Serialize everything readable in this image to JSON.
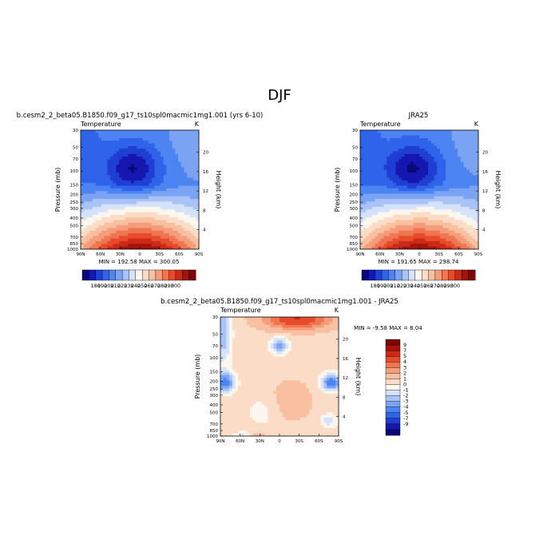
{
  "figure": {
    "title": "DJF"
  },
  "colors": {
    "abs_scale": [
      "#08087a",
      "#1616b0",
      "#1f3fd2",
      "#2e63ea",
      "#4c84f2",
      "#7ba3f4",
      "#a9c3f6",
      "#d4e2fa",
      "#fbf7ee",
      "#fbdcc6",
      "#f8bfa1",
      "#f59d7a",
      "#ef7651",
      "#e64c2c",
      "#cc2a16",
      "#a8120c",
      "#7d0606"
    ],
    "diff_scale": [
      "#08087a",
      "#1616b0",
      "#1f3fd2",
      "#2e63ea",
      "#4c84f2",
      "#7ba3f4",
      "#a9c3f6",
      "#d4e2fa",
      "#fbf7ee",
      "#fbdcc6",
      "#f8bfa1",
      "#f59d7a",
      "#ef7651",
      "#e64c2c",
      "#cc2a16",
      "#a8120c",
      "#7d0606"
    ]
  },
  "chart_data": [
    {
      "type": "heatmap",
      "title": "b.cesm2_2_beta05.B1850.f09_g17_ts10spl0macmic1mg1.001 (yrs 6-10)",
      "subtitle": "Temperature",
      "units": "K",
      "ylabel": "Pressure (mb)",
      "y2label": "Height (km)",
      "x_ticks": [
        "90N",
        "60N",
        "30N",
        "0",
        "30S",
        "60S",
        "90S"
      ],
      "y_ticks": [
        "30",
        "50",
        "70",
        "100",
        "150",
        "200",
        "250",
        "300",
        "400",
        "500",
        "700",
        "850",
        "1000"
      ],
      "y2_ticks": [
        "20",
        "16",
        "12",
        "8",
        "4"
      ],
      "stats": "MIN = 192.58   MAX = 300.05",
      "colorbar_labels": [
        "180",
        "190",
        "200",
        "210",
        "220",
        "230",
        "240",
        "250",
        "260",
        "270",
        "280",
        "290",
        "300"
      ],
      "zlim": [
        192.58,
        300.05
      ]
    },
    {
      "type": "heatmap",
      "title": "JRA25",
      "subtitle": "Temperature",
      "units": "K",
      "ylabel": "Pressure (mb)",
      "y2label": "Height (km)",
      "x_ticks": [
        "90N",
        "60N",
        "30N",
        "0",
        "30S",
        "60S",
        "90S"
      ],
      "y_ticks": [
        "30",
        "50",
        "70",
        "100",
        "150",
        "200",
        "250",
        "300",
        "400",
        "500",
        "700",
        "850",
        "1000"
      ],
      "y2_ticks": [
        "20",
        "16",
        "12",
        "8",
        "4"
      ],
      "stats": "MIN = 191.65   MAX = 298.74",
      "colorbar_labels": [
        "180",
        "190",
        "200",
        "210",
        "220",
        "230",
        "240",
        "250",
        "260",
        "270",
        "280",
        "290",
        "300"
      ],
      "zlim": [
        191.65,
        298.74
      ]
    },
    {
      "type": "heatmap",
      "title": "b.cesm2_2_beta05.B1850.f09_g17_ts10spl0macmic1mg1.001 - JRA25",
      "subtitle": "Temperature",
      "units": "K",
      "ylabel": "Pressure (mb)",
      "y2label": "Height (km)",
      "x_ticks": [
        "90N",
        "60N",
        "30N",
        "0",
        "30S",
        "60S",
        "90S"
      ],
      "y_ticks": [
        "30",
        "50",
        "70",
        "100",
        "150",
        "200",
        "250",
        "300",
        "400",
        "500",
        "700",
        "850",
        "1000"
      ],
      "y2_ticks": [
        "20",
        "16",
        "12",
        "8",
        "4"
      ],
      "stats": "MIN =   -9.58   MAX =    8.04",
      "colorbar_labels": [
        "9",
        "7",
        "5",
        "4",
        "3",
        "2",
        "1",
        "0",
        "-1",
        "-2",
        "-3",
        "-4",
        "-5",
        "-7",
        "-9"
      ],
      "zlim": [
        -9.58,
        8.04
      ]
    }
  ]
}
